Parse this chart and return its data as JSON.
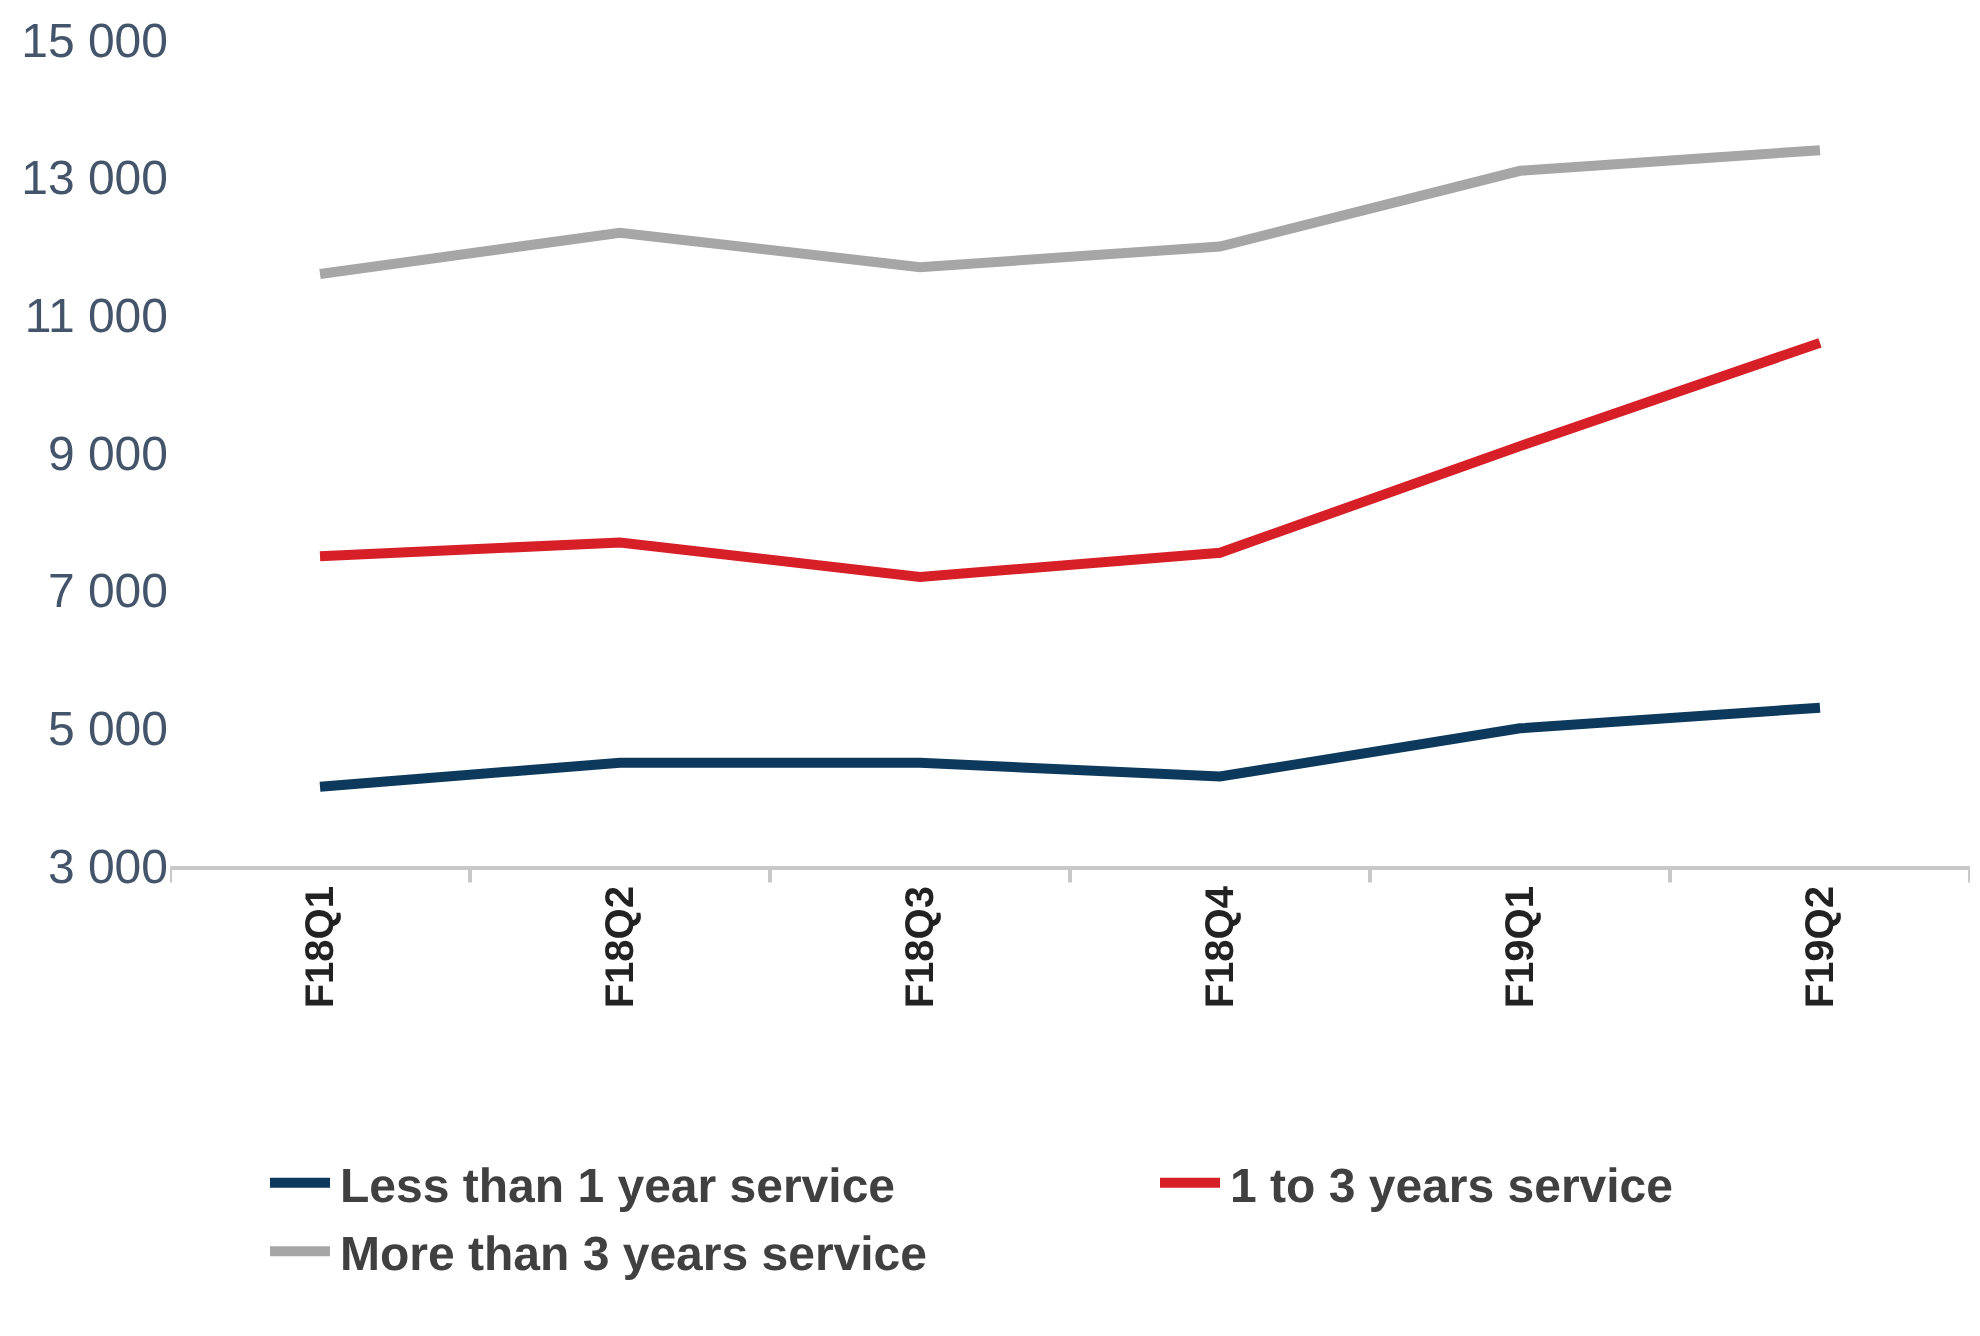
{
  "chart_data": {
    "type": "line",
    "categories": [
      "F18Q1",
      "F18Q2",
      "F18Q3",
      "F18Q4",
      "F19Q1",
      "F19Q2"
    ],
    "series": [
      {
        "name": "Less than 1 year service",
        "color": "#0d3a5c",
        "values": [
          4150,
          4500,
          4500,
          4300,
          5000,
          5300
        ]
      },
      {
        "name": "1 to 3 years service",
        "color": "#d71f27",
        "values": [
          7500,
          7700,
          7200,
          7550,
          9100,
          10600
        ]
      },
      {
        "name": "More than 3 years service",
        "color": "#a6a6a6",
        "values": [
          11600,
          12200,
          11700,
          12000,
          13100,
          13400
        ]
      }
    ],
    "ylim": [
      3000,
      15000
    ],
    "yticks": [
      {
        "value": 3000,
        "label": "3 000"
      },
      {
        "value": 5000,
        "label": "5 000"
      },
      {
        "value": 7000,
        "label": "7 000"
      },
      {
        "value": 9000,
        "label": "9 000"
      },
      {
        "value": 11000,
        "label": "11 000"
      },
      {
        "value": 13000,
        "label": "13 000"
      },
      {
        "value": 15000,
        "label": "15 000"
      }
    ],
    "legend": "bottom",
    "marker": "none",
    "line_style": "solid"
  }
}
